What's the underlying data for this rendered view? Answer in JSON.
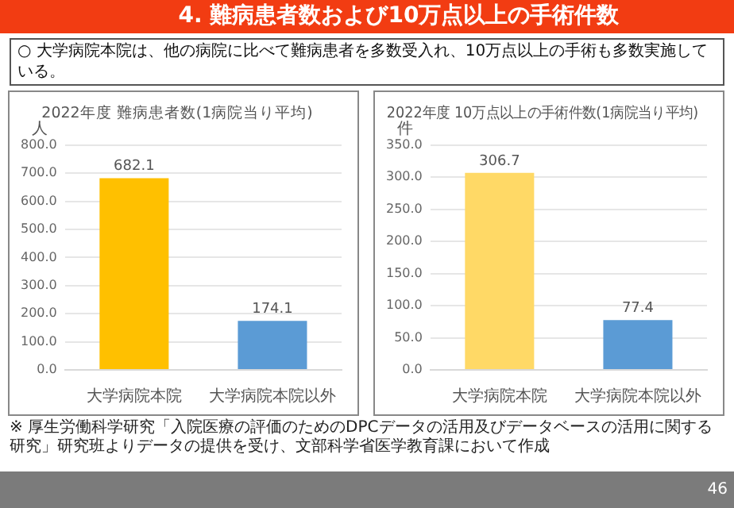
{
  "chart_data": [
    {
      "type": "bar",
      "title": "2022年度 難病患者数(1病院当り平均)",
      "ylabel": "人",
      "categories": [
        "大学病院本院",
        "大学病院本院以外"
      ],
      "values": [
        682.1,
        174.1
      ],
      "colors": [
        "#ffc000",
        "#5b9bd5"
      ],
      "ylim": [
        0,
        800
      ],
      "yticks": [
        {
          "value": 0,
          "label": "0.0"
        },
        {
          "value": 100,
          "label": "100.0"
        },
        {
          "value": 200,
          "label": "200.0"
        },
        {
          "value": 300,
          "label": "300.0"
        },
        {
          "value": 400,
          "label": "400.0"
        },
        {
          "value": 500,
          "label": "500.0"
        },
        {
          "value": 600,
          "label": "600.0"
        },
        {
          "value": 700,
          "label": "700.0"
        },
        {
          "value": 800,
          "label": "800.0"
        }
      ],
      "grid": "y",
      "data_labels": true,
      "annotations": [
        "4. 難病患者数および10万点以上の手術件数",
        "○ 大学病院本院は、他の病院に比べて難病患者を多数受入れ、10万点以上の手術も多数実施している。",
        "※ 厚生労働科学研究「入院医療の評価のためのDPCデータの活用及びデータベースの活用に関する研究」研究班よりデータの提供を受け、文部科学省医学教育課において作成",
        "46"
      ]
    },
    {
      "type": "bar",
      "title": "2022年度 10万点以上の手術件数(1病院当り平均)",
      "ylabel": "件",
      "categories": [
        "大学病院本院",
        "大学病院本院以外"
      ],
      "values": [
        306.7,
        77.4
      ],
      "colors": [
        "#ffd966",
        "#5b9bd5"
      ],
      "ylim": [
        0,
        350
      ],
      "yticks": [
        {
          "value": 0,
          "label": "0.0"
        },
        {
          "value": 50,
          "label": "50.0"
        },
        {
          "value": 100,
          "label": "100.0"
        },
        {
          "value": 150,
          "label": "150.0"
        },
        {
          "value": 200,
          "label": "200.0"
        },
        {
          "value": 250,
          "label": "250.0"
        },
        {
          "value": 300,
          "label": "300.0"
        },
        {
          "value": 350,
          "label": "350.0"
        }
      ],
      "grid": "y",
      "data_labels": true
    }
  ]
}
